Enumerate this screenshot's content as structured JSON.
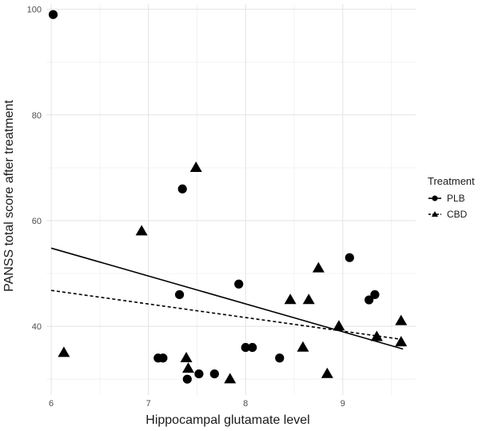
{
  "chart_data": {
    "type": "scatter",
    "xlabel": "Hippocampal glutamate level",
    "ylabel": "PANSS total score after treatment",
    "xlim": [
      5.95,
      9.75
    ],
    "ylim": [
      27,
      101
    ],
    "x_ticks": [
      6,
      7,
      8,
      9
    ],
    "y_ticks": [
      40,
      60,
      80,
      100
    ],
    "grid": true,
    "legend_position": "right",
    "legend": {
      "title": "Treatment",
      "entries": [
        {
          "label": "PLB",
          "marker": "circle",
          "line": "solid"
        },
        {
          "label": "CBD",
          "marker": "triangle",
          "line": "dashed"
        }
      ]
    },
    "series": [
      {
        "name": "PLB",
        "marker": "circle",
        "points": [
          {
            "x": 6.02,
            "y": 99
          },
          {
            "x": 7.1,
            "y": 34
          },
          {
            "x": 7.15,
            "y": 34
          },
          {
            "x": 7.32,
            "y": 46
          },
          {
            "x": 7.35,
            "y": 66
          },
          {
            "x": 7.4,
            "y": 30
          },
          {
            "x": 7.52,
            "y": 31
          },
          {
            "x": 7.68,
            "y": 31
          },
          {
            "x": 7.93,
            "y": 48
          },
          {
            "x": 8.0,
            "y": 36
          },
          {
            "x": 8.07,
            "y": 36
          },
          {
            "x": 8.35,
            "y": 34
          },
          {
            "x": 9.07,
            "y": 53
          },
          {
            "x": 9.27,
            "y": 45
          },
          {
            "x": 9.33,
            "y": 46
          }
        ],
        "fit": {
          "x": [
            6.0,
            9.62
          ],
          "y": [
            54.8,
            35.7
          ]
        }
      },
      {
        "name": "CBD",
        "marker": "triangle",
        "points": [
          {
            "x": 6.13,
            "y": 35
          },
          {
            "x": 6.93,
            "y": 58
          },
          {
            "x": 7.39,
            "y": 34
          },
          {
            "x": 7.41,
            "y": 32
          },
          {
            "x": 7.49,
            "y": 70
          },
          {
            "x": 7.84,
            "y": 30
          },
          {
            "x": 8.46,
            "y": 45
          },
          {
            "x": 8.59,
            "y": 36
          },
          {
            "x": 8.65,
            "y": 45
          },
          {
            "x": 8.75,
            "y": 51
          },
          {
            "x": 8.84,
            "y": 31
          },
          {
            "x": 8.96,
            "y": 40
          },
          {
            "x": 9.35,
            "y": 38
          },
          {
            "x": 9.6,
            "y": 41
          },
          {
            "x": 9.6,
            "y": 37
          }
        ],
        "fit": {
          "x": [
            6.0,
            9.62
          ],
          "y": [
            46.8,
            37.5
          ]
        }
      }
    ]
  },
  "colors": {
    "background": "#ffffff",
    "grid_major": "#e3e3e3",
    "grid_minor": "#f0f0f0",
    "marks": "#000000",
    "tick_text": "#4d4d4d"
  }
}
